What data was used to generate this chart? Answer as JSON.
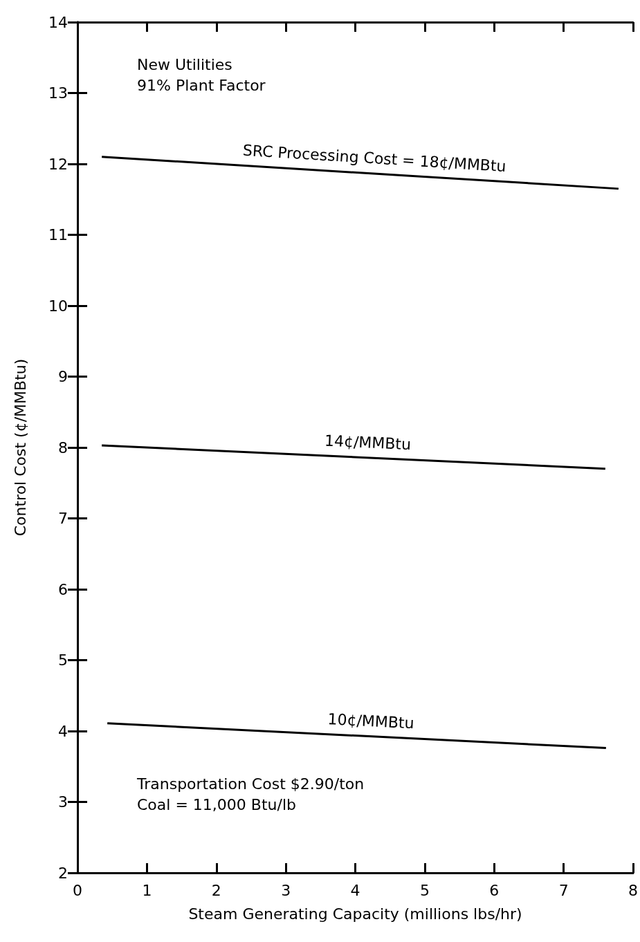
{
  "chart_data": {
    "type": "line",
    "xlabel": "Steam Generating Capacity (millions lbs/hr)",
    "ylabel": "Control Cost (¢/MMBtu)",
    "series": [
      {
        "name": "SRC Processing Cost = 18¢/MMBtu",
        "color": "#000000",
        "x": [
          0.35,
          7.79
        ],
        "values": [
          12.1,
          11.65
        ]
      },
      {
        "name": "14¢/MMBtu",
        "color": "#000000",
        "x": [
          0.35,
          7.6
        ],
        "values": [
          8.03,
          7.7
        ]
      },
      {
        "name": "10¢/MMBtu",
        "color": "#000000",
        "x": [
          0.43,
          7.61
        ],
        "values": [
          4.11,
          3.76
        ]
      }
    ],
    "xlim": [
      0,
      8
    ],
    "xticks": [
      0,
      1,
      2,
      3,
      4,
      5,
      6,
      7,
      8
    ],
    "ylim": [
      2,
      14
    ],
    "yticks": [
      2,
      3,
      4,
      5,
      6,
      7,
      8,
      9,
      10,
      11,
      12,
      13,
      14
    ],
    "grid": false,
    "marker": "none",
    "line_style": "solid",
    "annotations": [
      "New Utilities",
      "91% Plant Factor",
      "Transportation Cost $2.90/ton",
      "Coal = 11,000 Btu/lb"
    ]
  }
}
